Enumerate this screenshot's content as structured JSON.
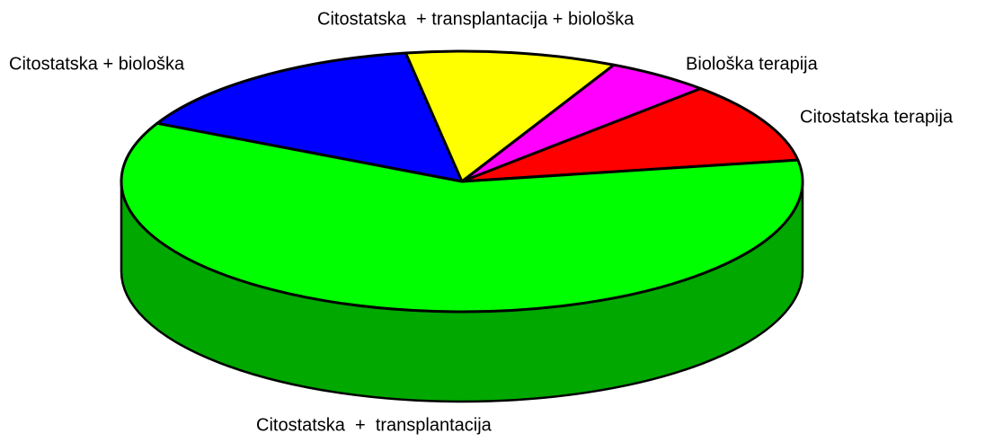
{
  "chart_data": {
    "type": "pie3d",
    "categories": [
      "Citostatska + biološka",
      "Citostatska  + transplantacija + biološka",
      "Biološka terapija",
      "Citostatska terapija",
      "Citostatska  +  transplantacija"
    ],
    "values": [
      15,
      10,
      5,
      10,
      60
    ],
    "colors": [
      "#0000ff",
      "#ffff00",
      "#ff00ff",
      "#ff0000",
      "#00ff00"
    ]
  }
}
